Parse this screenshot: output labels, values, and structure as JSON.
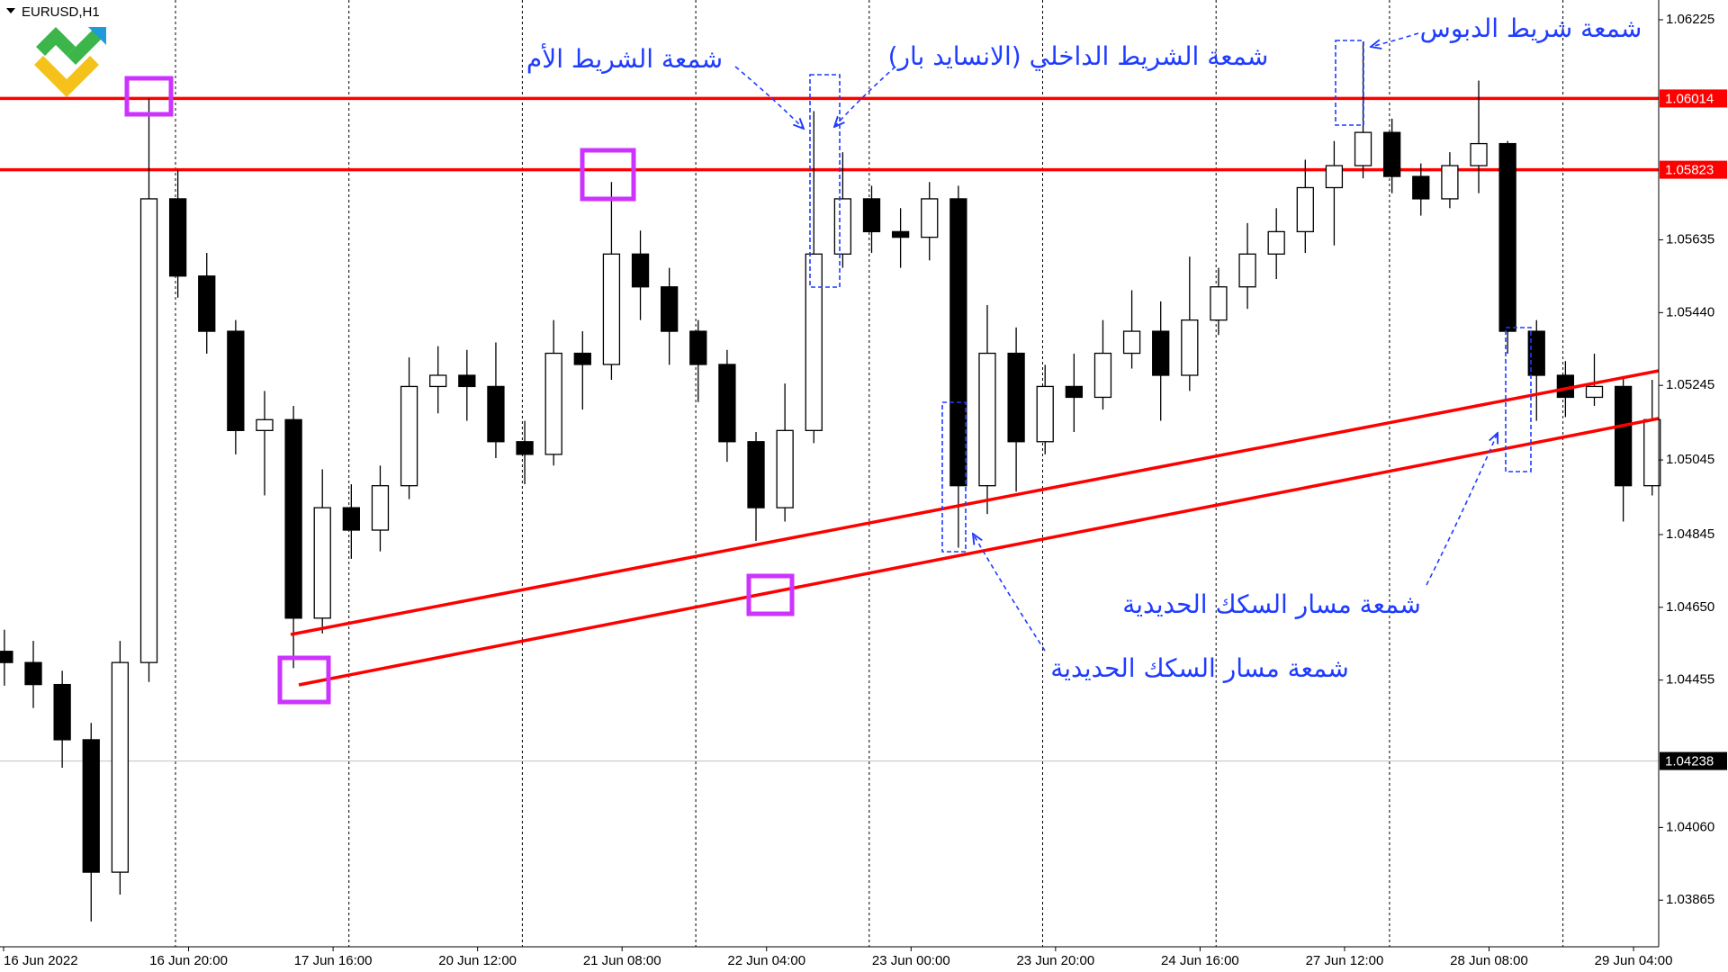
{
  "chart_data": {
    "type": "candlestick",
    "title": "EURUSD,H1",
    "ylim": [
      1.0374,
      1.06278
    ],
    "yticks": [
      1.06225,
      1.05635,
      {
        "value": 1.0544,
        "label": "1.05440"
      },
      1.05245,
      1.05045,
      1.04845,
      {
        "value": 1.0465,
        "label": "1.04650"
      },
      1.04455,
      {
        "value": 1.0406,
        "label": "1.04060"
      },
      1.03865
    ],
    "x_labels": [
      "16 Jun 2022",
      "16 Jun 20:00",
      "17 Jun 16:00",
      "20 Jun 12:00",
      "21 Jun 08:00",
      "22 Jun 04:00",
      "23 Jun 00:00",
      "23 Jun 20:00",
      "24 Jun 16:00",
      "27 Jun 12:00",
      "28 Jun 08:00",
      "29 Jun 04:00"
    ],
    "up_color": "#ffffff",
    "down_color": "#000000",
    "ohlc": [
      [
        1.04532,
        1.0459,
        1.0444,
        1.04502
      ],
      [
        1.04502,
        1.0456,
        1.0438,
        1.04443
      ],
      [
        1.04443,
        1.0448,
        1.0422,
        1.04295
      ],
      [
        1.04295,
        1.0434,
        1.03808,
        1.0394
      ],
      [
        1.0394,
        1.0456,
        1.0388,
        1.04502
      ],
      [
        1.04502,
        1.06014,
        1.0445,
        1.05745
      ],
      [
        1.05745,
        1.05823,
        1.0548,
        1.05538
      ],
      [
        1.05538,
        1.056,
        1.0533,
        1.0539
      ],
      [
        1.0539,
        1.0542,
        1.0506,
        1.05124
      ],
      [
        1.05124,
        1.0523,
        1.0495,
        1.05153
      ],
      [
        1.05153,
        1.0519,
        1.04487,
        1.04621
      ],
      [
        1.04621,
        1.0502,
        1.0458,
        1.04917
      ],
      [
        1.04917,
        1.0498,
        1.0478,
        1.04857
      ],
      [
        1.04857,
        1.0503,
        1.048,
        1.04976
      ],
      [
        1.04976,
        1.0532,
        1.0494,
        1.05242
      ],
      [
        1.05242,
        1.0535,
        1.0517,
        1.05272
      ],
      [
        1.05272,
        1.0534,
        1.0515,
        1.05242
      ],
      [
        1.05242,
        1.0536,
        1.0505,
        1.05094
      ],
      [
        1.05094,
        1.0515,
        1.0498,
        1.0506
      ],
      [
        1.0506,
        1.0542,
        1.0503,
        1.05331
      ],
      [
        1.05331,
        1.0539,
        1.0518,
        1.05301
      ],
      [
        1.05301,
        1.0579,
        1.0526,
        1.05597
      ],
      [
        1.05597,
        1.0566,
        1.0542,
        1.05509
      ],
      [
        1.05509,
        1.0556,
        1.053,
        1.0539
      ],
      [
        1.0539,
        1.0542,
        1.052,
        1.05301
      ],
      [
        1.05301,
        1.0534,
        1.0504,
        1.05094
      ],
      [
        1.05094,
        1.0512,
        1.04828,
        1.04917
      ],
      [
        1.04917,
        1.0525,
        1.0488,
        1.05124
      ],
      [
        1.05124,
        1.0598,
        1.0509,
        1.05597
      ],
      [
        1.05597,
        1.0587,
        1.0556,
        1.05745
      ],
      [
        1.05745,
        1.0578,
        1.056,
        1.05657
      ],
      [
        1.05657,
        1.0572,
        1.0556,
        1.05642
      ],
      [
        1.05642,
        1.0579,
        1.0558,
        1.05745
      ],
      [
        1.05745,
        1.0578,
        1.0481,
        1.04976
      ],
      [
        1.04976,
        1.0546,
        1.049,
        1.05331
      ],
      [
        1.05331,
        1.054,
        1.0496,
        1.05094
      ],
      [
        1.05094,
        1.053,
        1.0506,
        1.05242
      ],
      [
        1.05242,
        1.0533,
        1.0512,
        1.05213
      ],
      [
        1.05213,
        1.0542,
        1.0518,
        1.05331
      ],
      [
        1.05331,
        1.055,
        1.0529,
        1.0539
      ],
      [
        1.0539,
        1.0547,
        1.0515,
        1.05272
      ],
      [
        1.05272,
        1.0559,
        1.0523,
        1.0542
      ],
      [
        1.0542,
        1.0556,
        1.0538,
        1.05509
      ],
      [
        1.05509,
        1.0568,
        1.0545,
        1.05597
      ],
      [
        1.05597,
        1.0572,
        1.0553,
        1.05657
      ],
      [
        1.05657,
        1.0585,
        1.056,
        1.05775
      ],
      [
        1.05775,
        1.059,
        1.0562,
        1.05834
      ],
      [
        1.05834,
        1.06166,
        1.058,
        1.05923
      ],
      [
        1.05923,
        1.0596,
        1.0576,
        1.05805
      ],
      [
        1.05805,
        1.0584,
        1.057,
        1.05745
      ],
      [
        1.05745,
        1.0587,
        1.0572,
        1.05834
      ],
      [
        1.05834,
        1.06062,
        1.0576,
        1.05893
      ],
      [
        1.05893,
        1.059,
        1.0533,
        1.0539
      ],
      [
        1.0539,
        1.0542,
        1.0515,
        1.05272
      ],
      [
        1.05272,
        1.0531,
        1.0516,
        1.05213
      ],
      [
        1.05213,
        1.0533,
        1.0519,
        1.05242
      ],
      [
        1.05242,
        1.0527,
        1.0488,
        1.04976
      ],
      [
        1.04976,
        1.0526,
        1.0495,
        1.05153
      ]
    ],
    "levels": [
      {
        "value": 1.06014,
        "color": "#ff0000",
        "tag_color": "#ff0000"
      },
      {
        "value": 1.05823,
        "color": "#ff0000",
        "tag_color": "#ff0000"
      },
      {
        "value": 1.04238,
        "color": "#c0c0c0",
        "tag_color": "#000000"
      }
    ],
    "annotations": [
      "شمعة الشريط الأم",
      "شمعة الشريط الداخلي (الانسايد بار)",
      "شمعة شريط الدبوس",
      "شمعة مسار السكك الحديدية",
      "شمعة مسار السكك الحديدية"
    ]
  }
}
